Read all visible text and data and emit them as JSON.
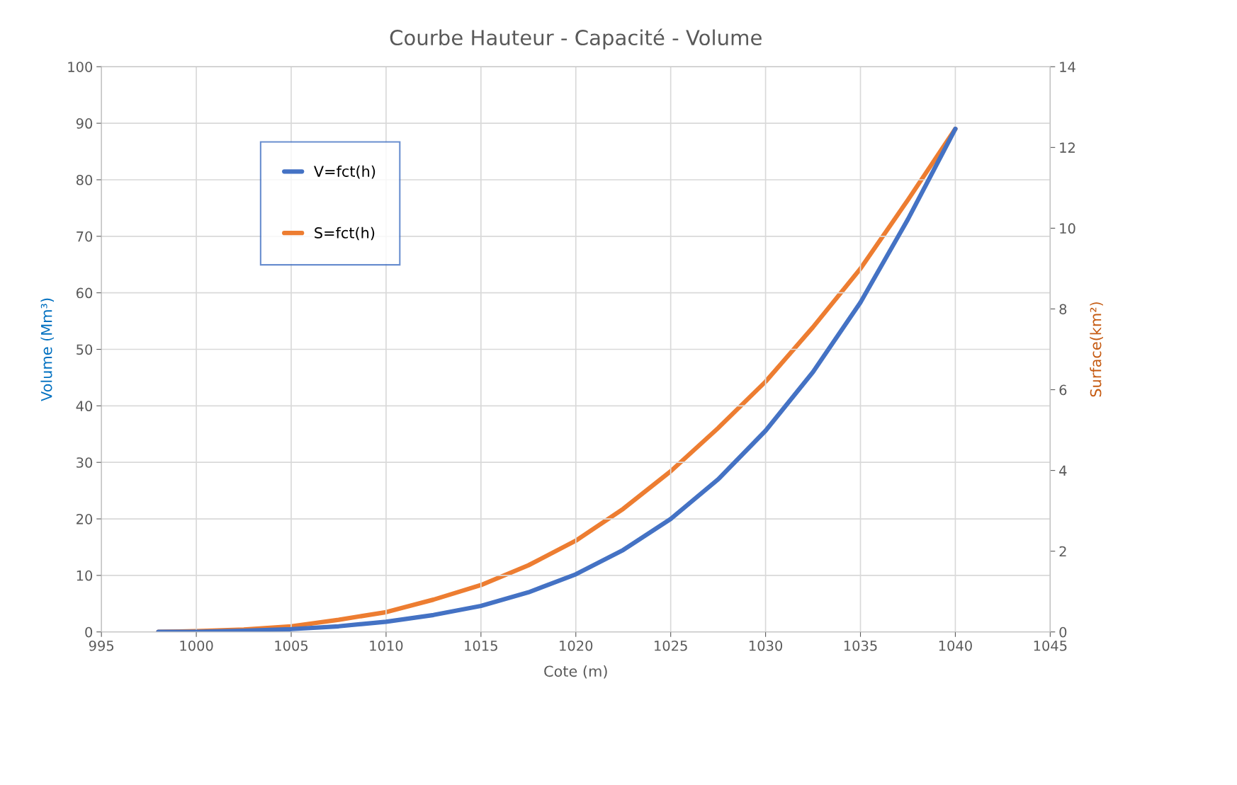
{
  "chart_data": {
    "type": "line",
    "title": "Courbe Hauteur - Capacité - Volume",
    "xlabel": "Cote (m)",
    "ylabel": "Volume (Mm³)",
    "y2label": "Surface(km²)",
    "x": [
      998,
      1000,
      1002.5,
      1005,
      1007.5,
      1010,
      1012.5,
      1015,
      1017.5,
      1020,
      1022.5,
      1025,
      1027.5,
      1030,
      1032.5,
      1035,
      1037.5,
      1040
    ],
    "series": [
      {
        "name": "V=fct(h)",
        "color": "#4472c4",
        "values": [
          0,
          0,
          0.2,
          0.5,
          1.0,
          1.8,
          3.0,
          4.6,
          7.0,
          10.2,
          14.5,
          20,
          27,
          35.6,
          46,
          58.3,
          73,
          89
        ]
      },
      {
        "name": "S=fct(h)",
        "color": "#ed7d31",
        "axis": "y2",
        "values": [
          0,
          0.02,
          0.06,
          0.14,
          0.3,
          0.49,
          0.8,
          1.16,
          1.65,
          2.26,
          3.05,
          3.98,
          5.05,
          6.2,
          7.55,
          9.0,
          10.7,
          12.46
        ]
      }
    ],
    "xlim": [
      995,
      1045
    ],
    "xticks": [
      995,
      1000,
      1005,
      1010,
      1015,
      1020,
      1025,
      1030,
      1035,
      1040,
      1045
    ],
    "ylim": [
      0,
      100
    ],
    "yticks": [
      0,
      10,
      20,
      30,
      40,
      50,
      60,
      70,
      80,
      90,
      100
    ],
    "y2lim": [
      0,
      14
    ],
    "y2ticks": [
      0,
      2,
      4,
      6,
      8,
      10,
      12,
      14
    ],
    "grid": true,
    "legend": "top left",
    "marker": "none",
    "line_style": "solid"
  }
}
